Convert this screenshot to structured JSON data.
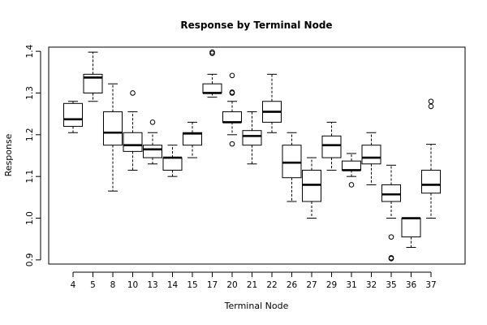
{
  "chart_data": {
    "type": "boxplot",
    "title": "Response by Terminal Node",
    "xlabel": "Terminal Node",
    "ylabel": "Response",
    "ylim": [
      0.89,
      1.41
    ],
    "y_ticks": [
      "0.9",
      "1.0",
      "1.1",
      "1.2",
      "1.3",
      "1.4"
    ],
    "grid": false,
    "categories": [
      "4",
      "5",
      "8",
      "10",
      "13",
      "14",
      "15",
      "17",
      "20",
      "21",
      "22",
      "26",
      "27",
      "29",
      "31",
      "32",
      "35",
      "36",
      "37"
    ],
    "boxes": [
      {
        "name": "4",
        "whisker_low": 1.205,
        "q1": 1.22,
        "median": 1.237,
        "q3": 1.275,
        "whisker_high": 1.28,
        "outliers": []
      },
      {
        "name": "5",
        "whisker_low": 1.28,
        "q1": 1.3,
        "median": 1.337,
        "q3": 1.345,
        "whisker_high": 1.398,
        "outliers": []
      },
      {
        "name": "8",
        "whisker_low": 1.065,
        "q1": 1.175,
        "median": 1.205,
        "q3": 1.255,
        "whisker_high": 1.322,
        "outliers": []
      },
      {
        "name": "10",
        "whisker_low": 1.115,
        "q1": 1.16,
        "median": 1.175,
        "q3": 1.205,
        "whisker_high": 1.255,
        "outliers": [
          1.3
        ]
      },
      {
        "name": "13",
        "whisker_low": 1.13,
        "q1": 1.145,
        "median": 1.165,
        "q3": 1.175,
        "whisker_high": 1.205,
        "outliers": [
          1.23
        ]
      },
      {
        "name": "14",
        "whisker_low": 1.1,
        "q1": 1.115,
        "median": 1.145,
        "q3": 1.145,
        "whisker_high": 1.175,
        "outliers": []
      },
      {
        "name": "15",
        "whisker_low": 1.145,
        "q1": 1.175,
        "median": 1.203,
        "q3": 1.205,
        "whisker_high": 1.23,
        "outliers": []
      },
      {
        "name": "17",
        "whisker_low": 1.29,
        "q1": 1.3,
        "median": 1.3,
        "q3": 1.322,
        "whisker_high": 1.345,
        "outliers": [
          1.395,
          1.398
        ]
      },
      {
        "name": "20",
        "whisker_low": 1.2,
        "q1": 1.23,
        "median": 1.23,
        "q3": 1.255,
        "whisker_high": 1.28,
        "outliers": [
          1.3,
          1.302,
          1.342,
          1.178
        ]
      },
      {
        "name": "21",
        "whisker_low": 1.13,
        "q1": 1.175,
        "median": 1.197,
        "q3": 1.21,
        "whisker_high": 1.255,
        "outliers": []
      },
      {
        "name": "22",
        "whisker_low": 1.205,
        "q1": 1.23,
        "median": 1.255,
        "q3": 1.28,
        "whisker_high": 1.345,
        "outliers": []
      },
      {
        "name": "26",
        "whisker_low": 1.04,
        "q1": 1.097,
        "median": 1.133,
        "q3": 1.175,
        "whisker_high": 1.205,
        "outliers": []
      },
      {
        "name": "27",
        "whisker_low": 1.0,
        "q1": 1.04,
        "median": 1.08,
        "q3": 1.115,
        "whisker_high": 1.145,
        "outliers": []
      },
      {
        "name": "29",
        "whisker_low": 1.115,
        "q1": 1.145,
        "median": 1.175,
        "q3": 1.197,
        "whisker_high": 1.23,
        "outliers": []
      },
      {
        "name": "31",
        "whisker_low": 1.1,
        "q1": 1.115,
        "median": 1.115,
        "q3": 1.137,
        "whisker_high": 1.155,
        "outliers": [
          1.08
        ]
      },
      {
        "name": "32",
        "whisker_low": 1.08,
        "q1": 1.13,
        "median": 1.145,
        "q3": 1.175,
        "whisker_high": 1.205,
        "outliers": []
      },
      {
        "name": "35",
        "whisker_low": 1.0,
        "q1": 1.04,
        "median": 1.057,
        "q3": 1.08,
        "whisker_high": 1.127,
        "outliers": [
          0.955,
          0.903,
          0.905
        ]
      },
      {
        "name": "36",
        "whisker_low": 0.93,
        "q1": 0.955,
        "median": 1.0,
        "q3": 1.0,
        "whisker_high": 1.0,
        "outliers": []
      },
      {
        "name": "37",
        "whisker_low": 1.0,
        "q1": 1.06,
        "median": 1.08,
        "q3": 1.115,
        "whisker_high": 1.177,
        "outliers": [
          1.268,
          1.28
        ]
      }
    ]
  }
}
